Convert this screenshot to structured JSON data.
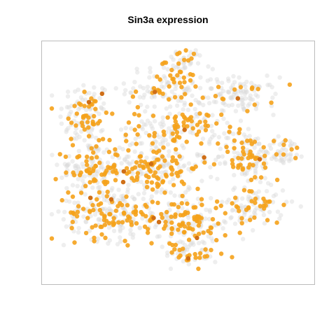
{
  "title": "Sin3a expression",
  "chart_data": {
    "type": "scatter",
    "title": "Sin3a expression",
    "xlabel": "",
    "ylabel": "",
    "axes_visible": false,
    "grid": false,
    "legend": "none",
    "colors": {
      "background_cells": "#d9d9d9",
      "expressing_cells": "#f5a21b",
      "high_expressing_cells": "#c86414",
      "frame": "#bbbbbb"
    },
    "xlim": [
      0,
      100
    ],
    "ylim": [
      0,
      100
    ],
    "clusters": [
      {
        "name": "left-upper",
        "x": 14,
        "y": 70,
        "sx": 5,
        "sy": 8,
        "n_gray": 90,
        "n_orange": 40
      },
      {
        "name": "left-lower",
        "x": 16,
        "y": 47,
        "sx": 6,
        "sy": 6,
        "n_gray": 90,
        "n_orange": 50
      },
      {
        "name": "top-center",
        "x": 46,
        "y": 82,
        "sx": 8,
        "sy": 5,
        "n_gray": 90,
        "n_orange": 35
      },
      {
        "name": "top-peak",
        "x": 52,
        "y": 94,
        "sx": 4,
        "sy": 3,
        "n_gray": 30,
        "n_orange": 12
      },
      {
        "name": "upper-right",
        "x": 74,
        "y": 79,
        "sx": 7,
        "sy": 4,
        "n_gray": 100,
        "n_orange": 14
      },
      {
        "name": "middle",
        "x": 50,
        "y": 65,
        "sx": 9,
        "sy": 4,
        "n_gray": 80,
        "n_orange": 55
      },
      {
        "name": "center",
        "x": 40,
        "y": 48,
        "sx": 10,
        "sy": 7,
        "n_gray": 130,
        "n_orange": 95
      },
      {
        "name": "right-middle",
        "x": 76,
        "y": 52,
        "sx": 6,
        "sy": 6,
        "n_gray": 90,
        "n_orange": 45
      },
      {
        "name": "far-right-arm",
        "x": 91,
        "y": 55,
        "sx": 4,
        "sy": 3,
        "n_gray": 40,
        "n_orange": 8
      },
      {
        "name": "bottom-left",
        "x": 24,
        "y": 28,
        "sx": 9,
        "sy": 6,
        "n_gray": 130,
        "n_orange": 80
      },
      {
        "name": "bottom-center",
        "x": 52,
        "y": 24,
        "sx": 10,
        "sy": 6,
        "n_gray": 110,
        "n_orange": 85
      },
      {
        "name": "bottom-right",
        "x": 80,
        "y": 31,
        "sx": 6,
        "sy": 5,
        "n_gray": 70,
        "n_orange": 30
      },
      {
        "name": "bottom-tip",
        "x": 55,
        "y": 10,
        "sx": 5,
        "sy": 3,
        "n_gray": 30,
        "n_orange": 22
      }
    ]
  }
}
